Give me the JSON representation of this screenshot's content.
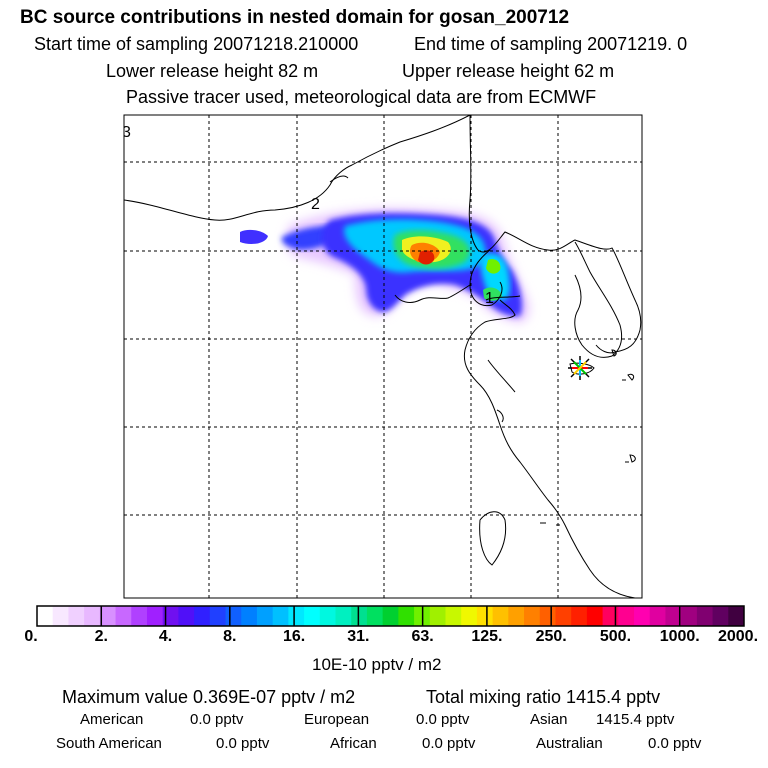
{
  "header": {
    "title": "BC  source contributions in nested domain for gosan_200712",
    "start_label": "Start time of sampling 20071218.210000",
    "end_label": "End time of sampling 20071219.     0",
    "lower_label": "Lower release height   82 m",
    "upper_label": "Upper release height   62 m",
    "note": "Passive tracer used, meteorological data are from ECMWF"
  },
  "map": {
    "contour_labels": [
      "3",
      "2",
      "1"
    ],
    "receptor_marker": "asterisk-star",
    "colors": {
      "magenta": "#c020ff",
      "blue": "#3040ff",
      "cyan": "#00f0ff",
      "green": "#30e060",
      "yellow": "#f0f020",
      "orange": "#ff8000",
      "red": "#e02000"
    }
  },
  "colorbar": {
    "ticks": [
      "0.",
      "2.",
      "4.",
      "8.",
      "16.",
      "31.",
      "63.",
      "125.",
      "250.",
      "500.",
      "1000.",
      "2000."
    ],
    "unit": "10E-10 pptv / m2",
    "colors": [
      "#ffffff",
      "#f8e8ff",
      "#f0d0ff",
      "#e8b8ff",
      "#d890ff",
      "#c868ff",
      "#b040ff",
      "#a020ff",
      "#7010f0",
      "#5010f8",
      "#3020ff",
      "#2040ff",
      "#1060ff",
      "#0080ff",
      "#00a0ff",
      "#00c0ff",
      "#00e8ff",
      "#00ffff",
      "#00f8e0",
      "#00f0c0",
      "#00e090",
      "#00e060",
      "#00d030",
      "#30e000",
      "#70f000",
      "#a0f000",
      "#c8f800",
      "#f0f800",
      "#ffe000",
      "#ffc000",
      "#ffa000",
      "#ff8000",
      "#ff6000",
      "#ff4000",
      "#ff2000",
      "#ff0000",
      "#ff0060",
      "#ff0090",
      "#ff00b0",
      "#e000a0",
      "#c00090",
      "#a00080",
      "#800070",
      "#600060",
      "#400040"
    ]
  },
  "footer": {
    "maximum": "Maximum value  0.369E-07 pptv / m2",
    "total": "Total mixing ratio     1415.4 pptv",
    "american": "American",
    "american_val": "0.0 pptv",
    "european": "European",
    "european_val": "0.0 pptv",
    "asian": "Asian",
    "asian_val": "1415.4 pptv",
    "south_american": "South American",
    "south_american_val": "0.0 pptv",
    "african": "African",
    "african_val": "0.0 pptv",
    "australian": "Australian",
    "australian_val": "0.0 pptv"
  }
}
